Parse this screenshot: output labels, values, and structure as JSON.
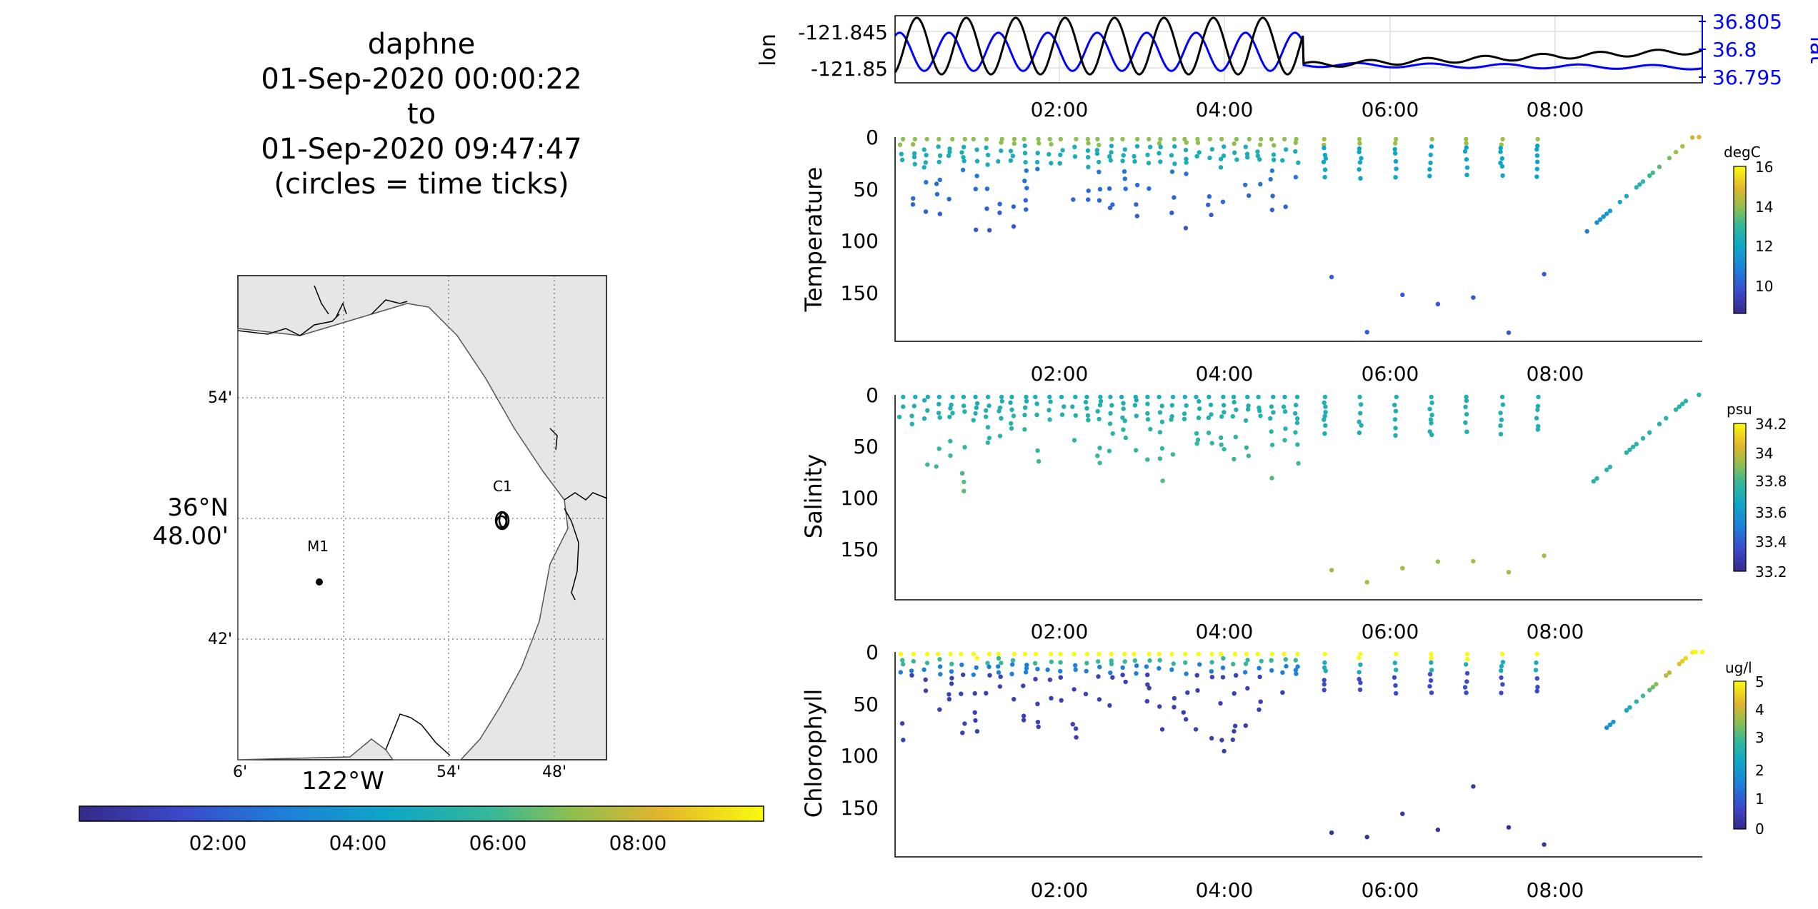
{
  "title": {
    "vehicle": "daphne",
    "start": "01-Sep-2020 00:00:22",
    "to": "to",
    "end": "01-Sep-2020 09:47:47",
    "note": "(circles = time ticks)"
  },
  "map": {
    "lat_ticks": [
      "54'",
      "42'"
    ],
    "lat_center": [
      "36°N",
      "48.00'"
    ],
    "lon_ticks": [
      "6'",
      "54'",
      "48'"
    ],
    "lon_center": "122°W",
    "stations": [
      {
        "name": "C1",
        "lon": -121.8475,
        "lat": 36.797
      },
      {
        "name": "M1",
        "lon": -122.021,
        "lat": 36.747
      }
    ],
    "land_color": "#e6e6e6",
    "sea_color": "#ffffff"
  },
  "time_colorbar": {
    "ticks": [
      "02:00",
      "04:00",
      "06:00",
      "08:00"
    ],
    "colormap": "parula"
  },
  "chart_data": [
    {
      "type": "line",
      "name": "position",
      "x_unit": "hours",
      "xlim": [
        0,
        9.8
      ],
      "x_ticks": [
        "02:00",
        "04:00",
        "06:00",
        "08:00"
      ],
      "ylabel": "lon",
      "ylabel_right": "lat",
      "yticks": [
        "-121.845",
        "-121.85"
      ],
      "yticks_right": [
        "36.805",
        "36.8",
        "36.795"
      ],
      "ylim": [
        -121.8527,
        -121.8432
      ],
      "ylim_right": [
        36.7935,
        36.8065
      ],
      "lon_color": "#000000",
      "lat_color": "#0000ff",
      "lon_model": {
        "mean": -121.8475,
        "amp": 0.004,
        "period_h": 0.6,
        "until_h": 4.95
      },
      "lat_model": {
        "mean": 36.7995,
        "amp": 0.0037,
        "period_h": 0.6,
        "until_h": 4.95
      }
    },
    {
      "type": "scatter",
      "ylabel": "Temperature",
      "yticks": [
        "0",
        "50",
        "100",
        "150"
      ],
      "ylim": [
        195,
        0
      ],
      "x_ticks": [
        "02:00",
        "04:00",
        "06:00",
        "08:00"
      ],
      "colorbar": {
        "unit": "degC",
        "ticks": [
          "10",
          "12",
          "14",
          "16"
        ],
        "range": [
          8.8,
          16.2
        ]
      }
    },
    {
      "type": "scatter",
      "ylabel": "Salinity",
      "yticks": [
        "0",
        "50",
        "100",
        "150"
      ],
      "ylim": [
        200,
        0
      ],
      "x_ticks": [
        "02:00",
        "04:00",
        "06:00",
        "08:00"
      ],
      "colorbar": {
        "unit": "psu",
        "ticks": [
          "33.2",
          "33.4",
          "33.6",
          "33.8",
          "34",
          "34.2"
        ],
        "range": [
          33.2,
          34.25
        ]
      }
    },
    {
      "type": "scatter",
      "ylabel": "Chlorophyll",
      "yticks": [
        "0",
        "50",
        "100",
        "150"
      ],
      "ylim": [
        198,
        0
      ],
      "x_ticks": [
        "02:00",
        "04:00",
        "06:00",
        "08:00"
      ],
      "colorbar": {
        "unit": "ug/l",
        "ticks": [
          "0",
          "1",
          "2",
          "3",
          "4",
          "5"
        ],
        "range": [
          0,
          5.2
        ]
      }
    }
  ]
}
